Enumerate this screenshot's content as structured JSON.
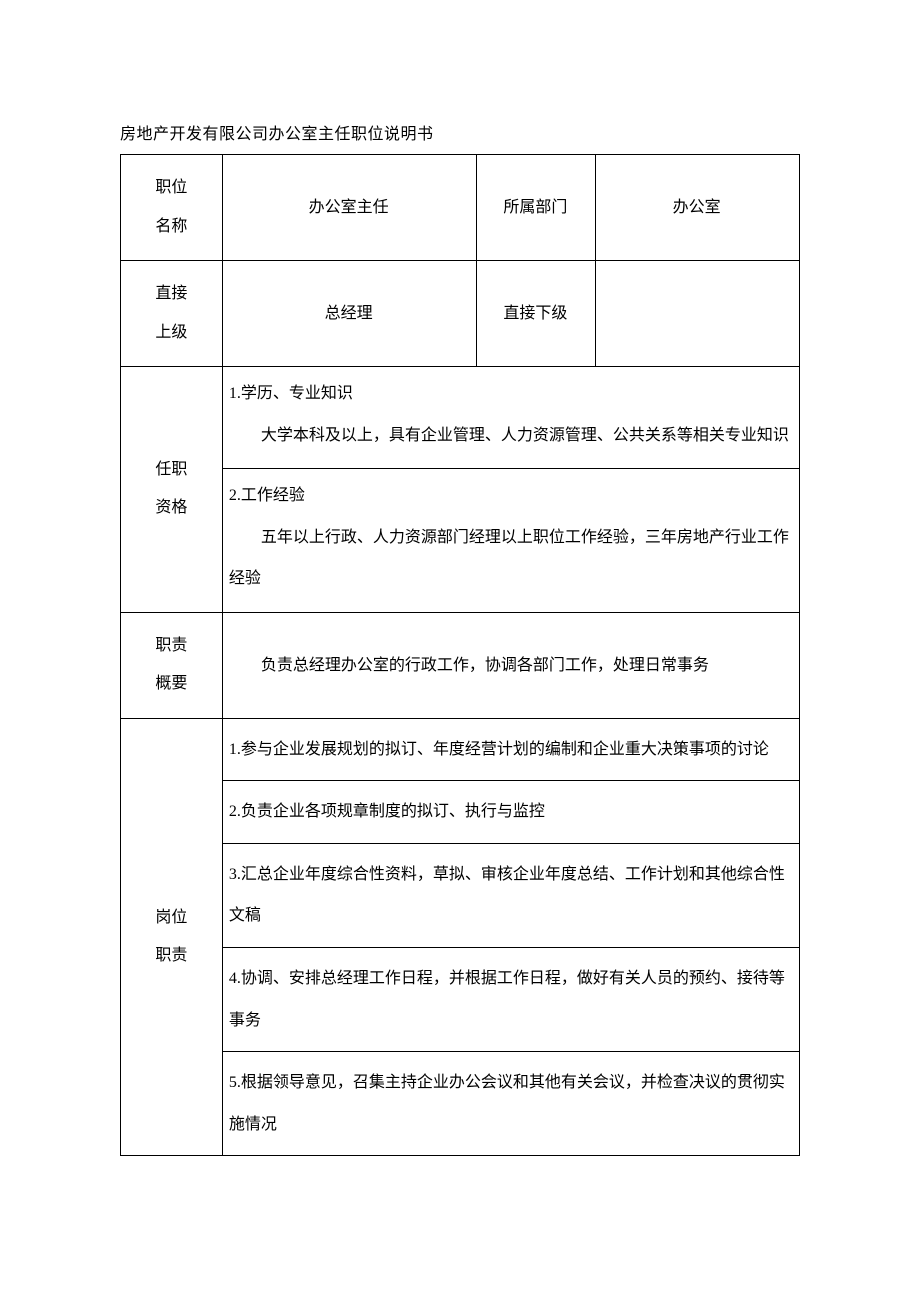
{
  "title": "房地产开发有限公司办公室主任职位说明书",
  "rows": {
    "positionName": {
      "label": "职位名称",
      "value": "办公室主任",
      "deptLabel": "所属部门",
      "deptValue": "办公室"
    },
    "supervisor": {
      "label": "直接上级",
      "value": "总经理",
      "subLabel": "直接下级",
      "subValue": ""
    },
    "qualifications": {
      "label": "任职资格",
      "section1": {
        "heading": "1.学历、专业知识",
        "body": "大学本科及以上，具有企业管理、人力资源管理、公共关系等相关专业知识"
      },
      "section2": {
        "heading": "2.工作经验",
        "body": "五年以上行政、人力资源部门经理以上职位工作经验，三年房地产行业工作经验"
      }
    },
    "summary": {
      "label": "职责概要",
      "text": "负责总经理办公室的行政工作，协调各部门工作，处理日常事务"
    },
    "responsibilities": {
      "label": "岗位职责",
      "items": [
        "1.参与企业发展规划的拟订、年度经营计划的编制和企业重大决策事项的讨论",
        "2.负责企业各项规章制度的拟订、执行与监控",
        "3.汇总企业年度综合性资料，草拟、审核企业年度总结、工作计划和其他综合性文稿",
        "4.协调、安排总经理工作日程，并根据工作日程，做好有关人员的预约、接待等事务",
        "5.根据领导意见，召集主持企业办公会议和其他有关会议，并检查决议的贯彻实施情况"
      ]
    }
  },
  "styling": {
    "pageWidth": 920,
    "pageHeight": 1301,
    "fontColor": "#000000",
    "backgroundColor": "#ffffff",
    "borderColor": "#000000",
    "fontSize": 16,
    "fontFamily": "SimSun",
    "labelColWidthPct": 12,
    "contentColWidthPct": 30,
    "deptLabelColWidthPct": 14,
    "deptColWidthPct": 24,
    "lineHeight": 2.6
  }
}
